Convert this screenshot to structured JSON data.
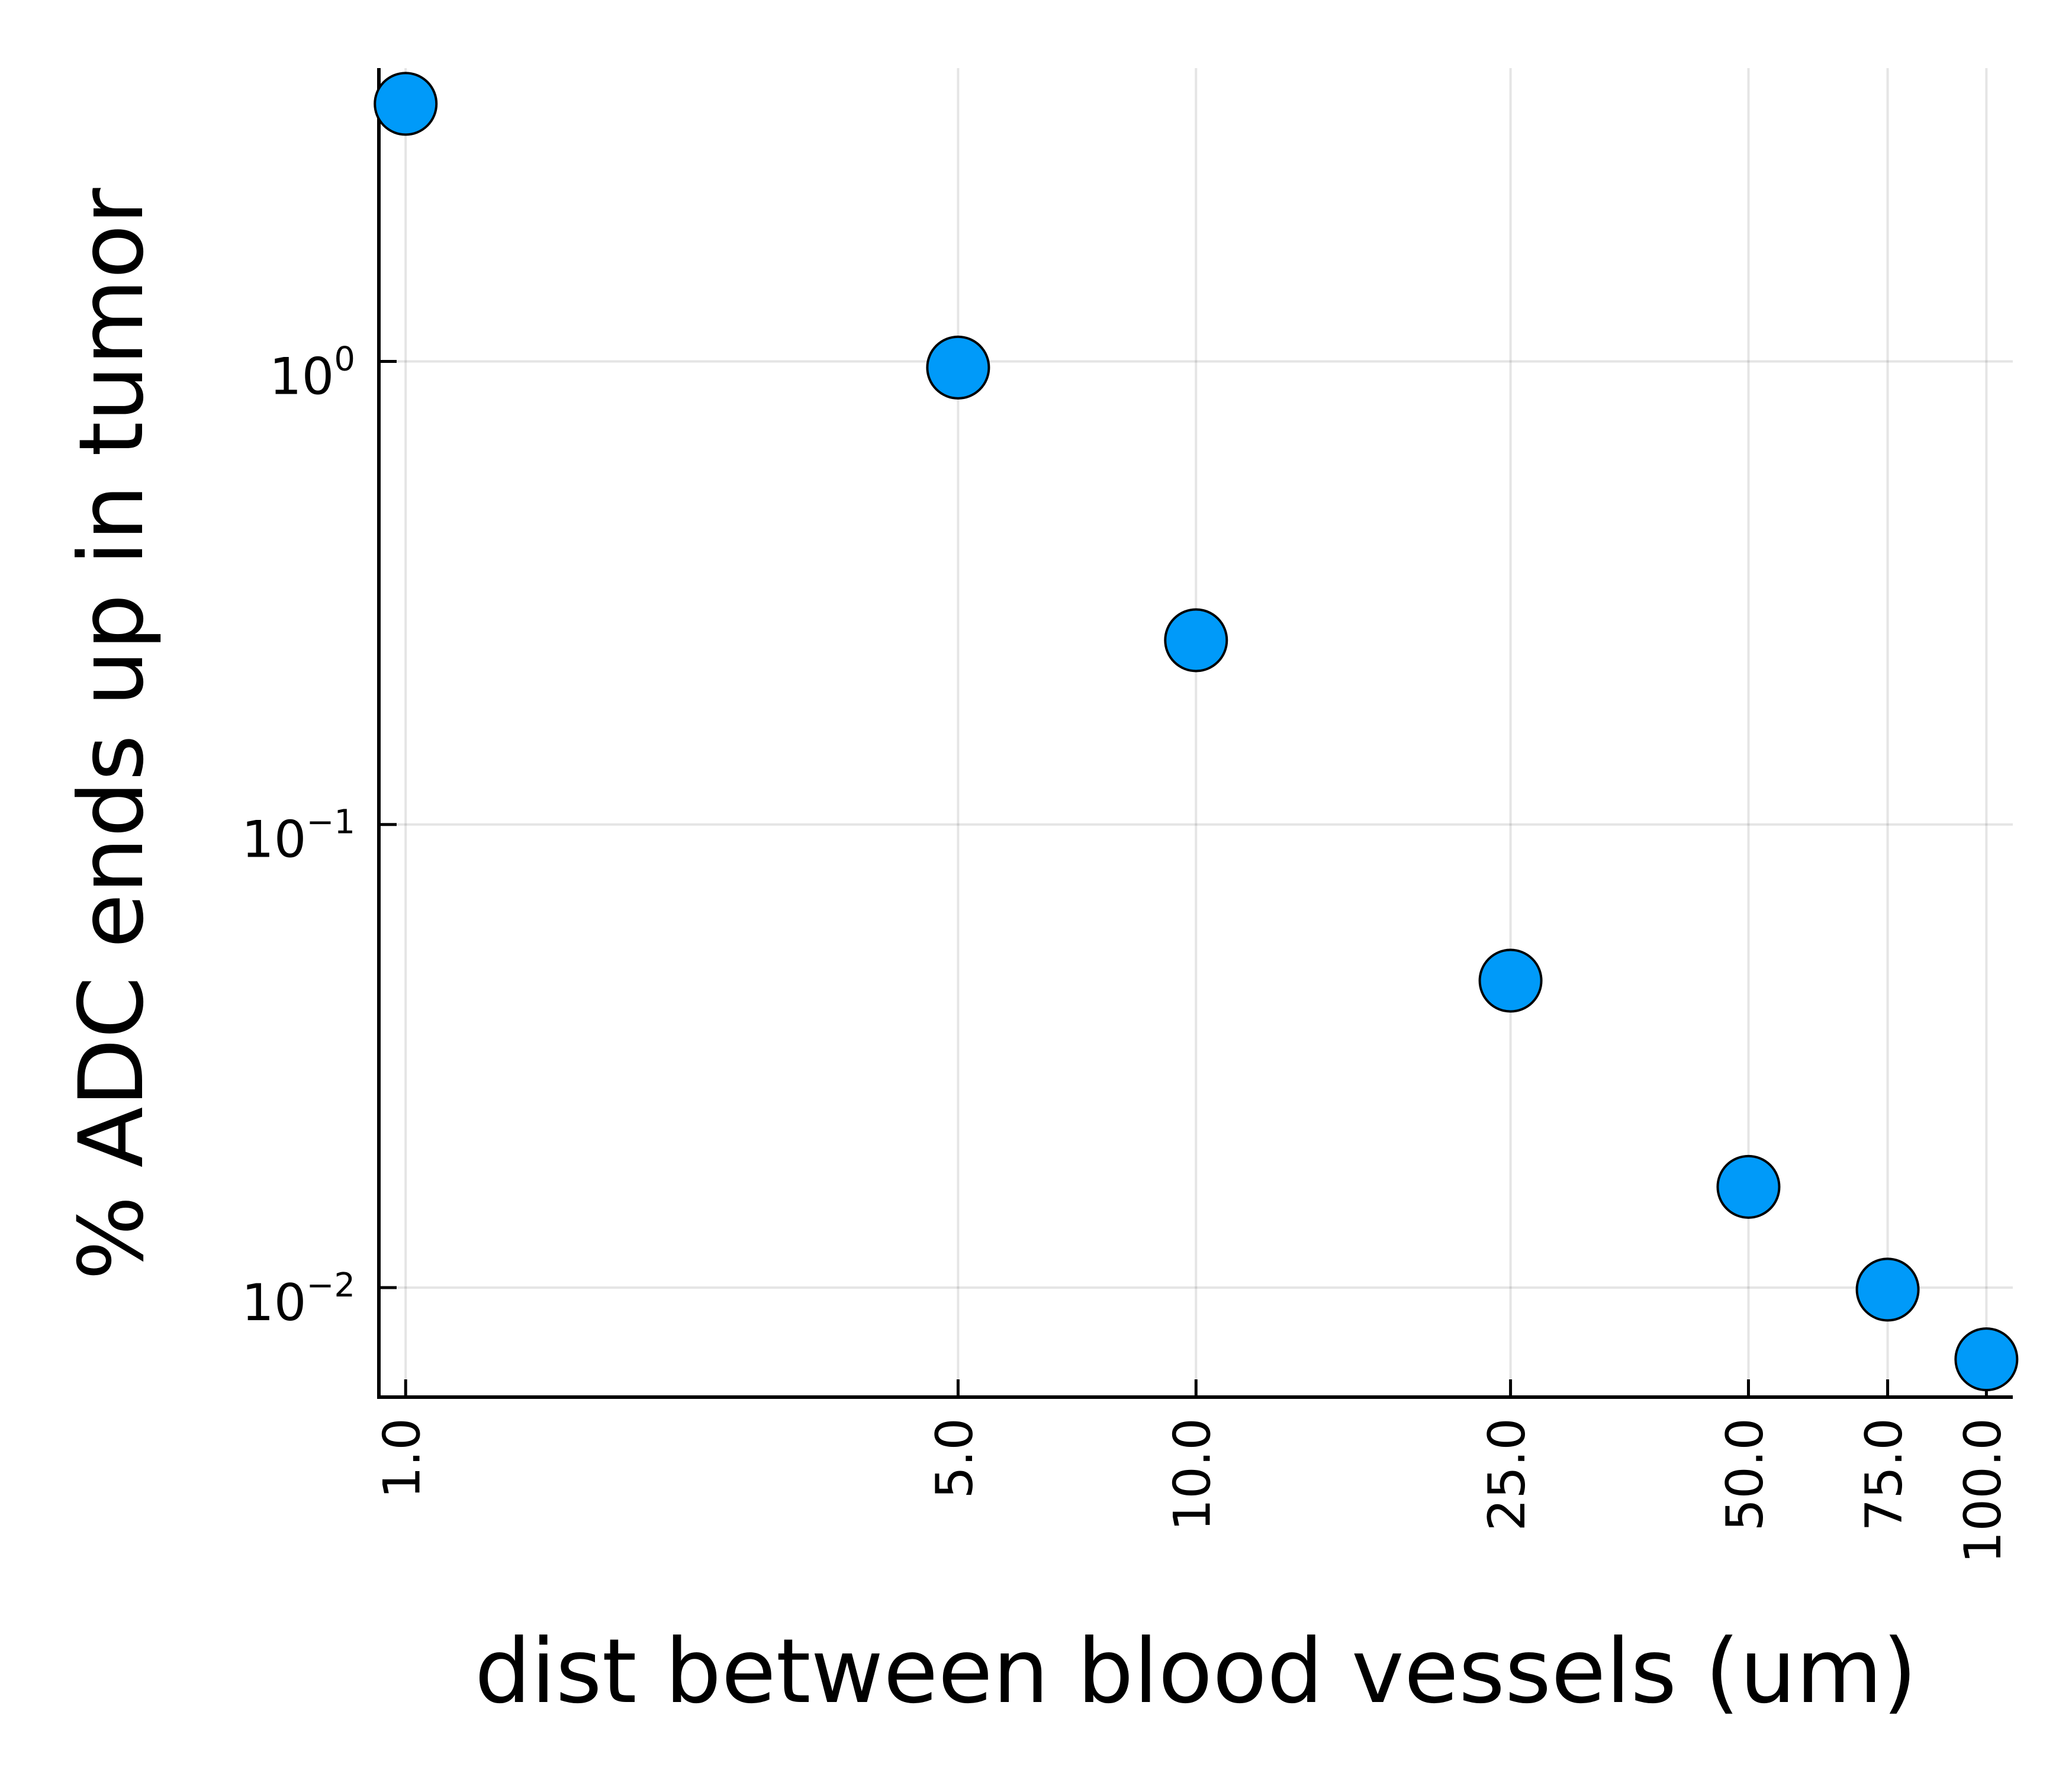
{
  "chart_data": {
    "type": "scatter",
    "xlabel": "dist between blood vessels (um)",
    "ylabel": "% ADC ends up in tumor",
    "x_scale": "log",
    "y_scale": "log",
    "xlim": [
      0.925,
      108
    ],
    "ylim": [
      0.0058,
      4.3
    ],
    "x_ticks": [
      {
        "value": 1,
        "label": "1.0"
      },
      {
        "value": 5,
        "label": "5.0"
      },
      {
        "value": 10,
        "label": "10.0"
      },
      {
        "value": 25,
        "label": "25.0"
      },
      {
        "value": 50,
        "label": "50.0"
      },
      {
        "value": 75,
        "label": "75.0"
      },
      {
        "value": 100,
        "label": "100.0"
      }
    ],
    "y_ticks": [
      {
        "value": 1,
        "base": "10",
        "exponent": "0"
      },
      {
        "value": 0.1,
        "base": "10",
        "exponent": "−1"
      },
      {
        "value": 0.01,
        "base": "10",
        "exponent": "−2"
      }
    ],
    "grid": true,
    "legend": "none",
    "marker_color": "#009af9",
    "marker_edge_color": "#000000",
    "series": [
      {
        "x": [
          1,
          5,
          10,
          25,
          50,
          75,
          100
        ],
        "y": [
          3.6,
          0.97,
          0.25,
          0.046,
          0.0165,
          0.0099,
          0.007
        ]
      }
    ]
  }
}
